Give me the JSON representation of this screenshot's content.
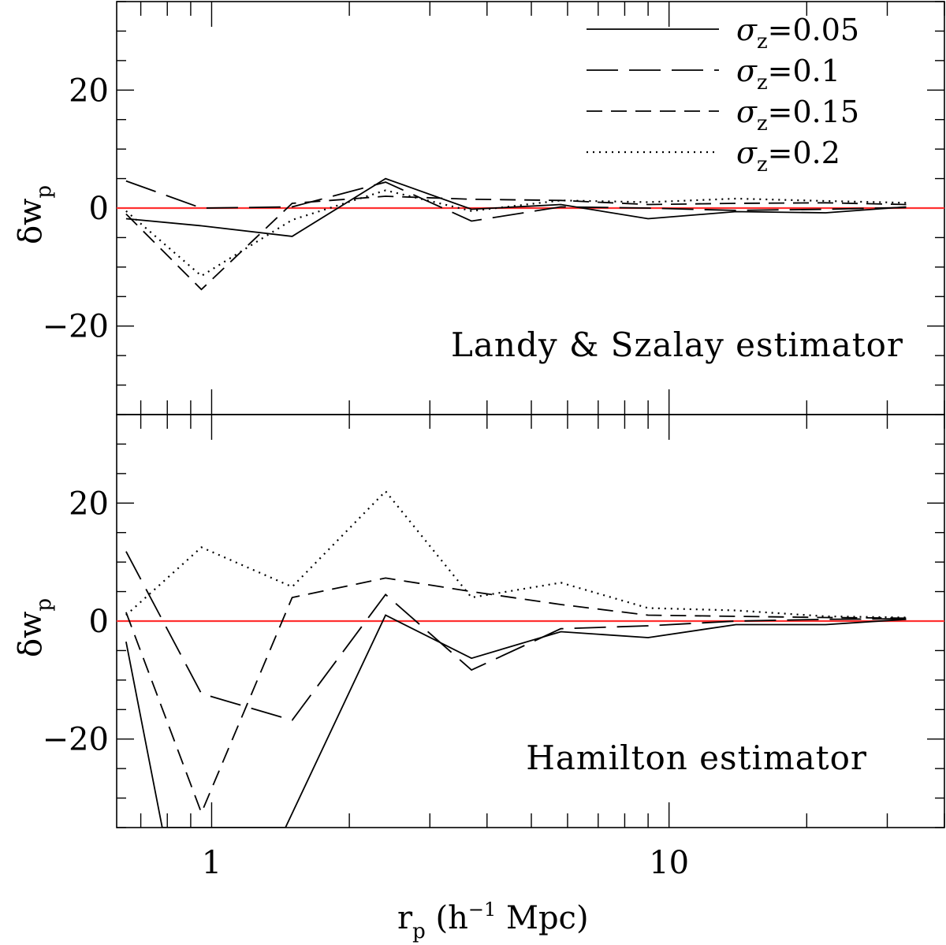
{
  "chart_data": {
    "type": "line",
    "xscale": "log",
    "xlim": [
      0.62,
      40
    ],
    "xlabel_main": "r",
    "xlabel_sub": "p",
    "xlabel_rest": " (h",
    "xlabel_sup": "−1",
    "xlabel_end": " Mpc)",
    "xticks": [
      {
        "value": 1,
        "label": "1"
      },
      {
        "value": 10,
        "label": "10"
      }
    ],
    "ylabel_main": "δw",
    "ylabel_sub": "p",
    "ylim": [
      -35,
      35
    ],
    "yticks": [
      {
        "value": 20,
        "label": "20"
      },
      {
        "value": 0,
        "label": "0"
      },
      {
        "value": -20,
        "label": "−20"
      }
    ],
    "reference_line": {
      "y": 0,
      "color": "#ff3030"
    },
    "legend": {
      "placement": "top-right",
      "entries": [
        {
          "symbol": "σ",
          "sub": "z",
          "value": "=0.05",
          "style": "solid"
        },
        {
          "symbol": "σ",
          "sub": "z",
          "value": "=0.1",
          "style": "longdash"
        },
        {
          "symbol": "σ",
          "sub": "z",
          "value": "=0.15",
          "style": "dash"
        },
        {
          "symbol": "σ",
          "sub": "z",
          "value": "=0.2",
          "style": "dot"
        }
      ]
    },
    "panels": [
      {
        "label": "Landy & Szalay estimator",
        "series": [
          {
            "style": "solid",
            "points": [
              [
                0.65,
                -1.8
              ],
              [
                0.95,
                -3.0
              ],
              [
                1.5,
                -4.8
              ],
              [
                2.4,
                5.0
              ],
              [
                3.7,
                -0.2
              ],
              [
                5.8,
                0.6
              ],
              [
                9.0,
                -1.8
              ],
              [
                14.0,
                -0.6
              ],
              [
                22.0,
                -0.8
              ],
              [
                33.0,
                0.2
              ]
            ]
          },
          {
            "style": "longdash",
            "points": [
              [
                0.65,
                4.6
              ],
              [
                0.95,
                0.0
              ],
              [
                1.5,
                0.2
              ],
              [
                2.4,
                4.4
              ],
              [
                3.7,
                -2.2
              ],
              [
                5.8,
                0.2
              ],
              [
                9.0,
                0.0
              ],
              [
                14.0,
                -0.4
              ],
              [
                22.0,
                -0.2
              ],
              [
                33.0,
                0.1
              ]
            ]
          },
          {
            "style": "dash",
            "points": [
              [
                0.65,
                -1.0
              ],
              [
                0.95,
                -13.8
              ],
              [
                1.5,
                0.8
              ],
              [
                2.4,
                2.0
              ],
              [
                3.7,
                1.5
              ],
              [
                5.8,
                1.3
              ],
              [
                9.0,
                0.6
              ],
              [
                14.0,
                0.8
              ],
              [
                22.0,
                0.9
              ],
              [
                33.0,
                0.6
              ]
            ]
          },
          {
            "style": "dot",
            "points": [
              [
                0.65,
                -0.5
              ],
              [
                0.95,
                -11.5
              ],
              [
                1.5,
                -2.0
              ],
              [
                2.4,
                3.0
              ],
              [
                3.7,
                -0.5
              ],
              [
                5.8,
                1.3
              ],
              [
                9.0,
                1.0
              ],
              [
                14.0,
                1.6
              ],
              [
                22.0,
                1.2
              ],
              [
                33.0,
                0.9
              ]
            ]
          }
        ]
      },
      {
        "label": "Hamilton estimator",
        "series": [
          {
            "style": "solid",
            "points": [
              [
                0.65,
                -3.5
              ],
              [
                0.78,
                -35.0
              ],
              [
                1.45,
                -35.0
              ],
              [
                2.4,
                1.0
              ],
              [
                3.7,
                -6.3
              ],
              [
                5.8,
                -1.8
              ],
              [
                9.0,
                -2.8
              ],
              [
                14.0,
                -0.6
              ],
              [
                22.0,
                -0.6
              ],
              [
                33.0,
                0.3
              ]
            ]
          },
          {
            "style": "longdash",
            "points": [
              [
                0.65,
                11.8
              ],
              [
                0.95,
                -12.3
              ],
              [
                1.5,
                -16.8
              ],
              [
                2.4,
                4.5
              ],
              [
                3.7,
                -8.3
              ],
              [
                5.8,
                -1.3
              ],
              [
                9.0,
                -0.8
              ],
              [
                14.0,
                0.0
              ],
              [
                22.0,
                0.3
              ],
              [
                33.0,
                0.4
              ]
            ]
          },
          {
            "style": "dash",
            "points": [
              [
                0.65,
                1.5
              ],
              [
                0.95,
                -32.5
              ],
              [
                1.5,
                4.0
              ],
              [
                2.4,
                7.3
              ],
              [
                3.7,
                5.0
              ],
              [
                5.8,
                2.8
              ],
              [
                9.0,
                1.0
              ],
              [
                14.0,
                0.8
              ],
              [
                22.0,
                0.6
              ],
              [
                33.0,
                0.5
              ]
            ]
          },
          {
            "style": "dot",
            "points": [
              [
                0.65,
                1.0
              ],
              [
                0.95,
                12.5
              ],
              [
                1.5,
                5.8
              ],
              [
                2.4,
                22.0
              ],
              [
                3.7,
                4.0
              ],
              [
                5.8,
                6.5
              ],
              [
                9.0,
                2.2
              ],
              [
                14.0,
                1.8
              ],
              [
                22.0,
                0.8
              ],
              [
                33.0,
                0.6
              ]
            ]
          }
        ]
      }
    ]
  }
}
